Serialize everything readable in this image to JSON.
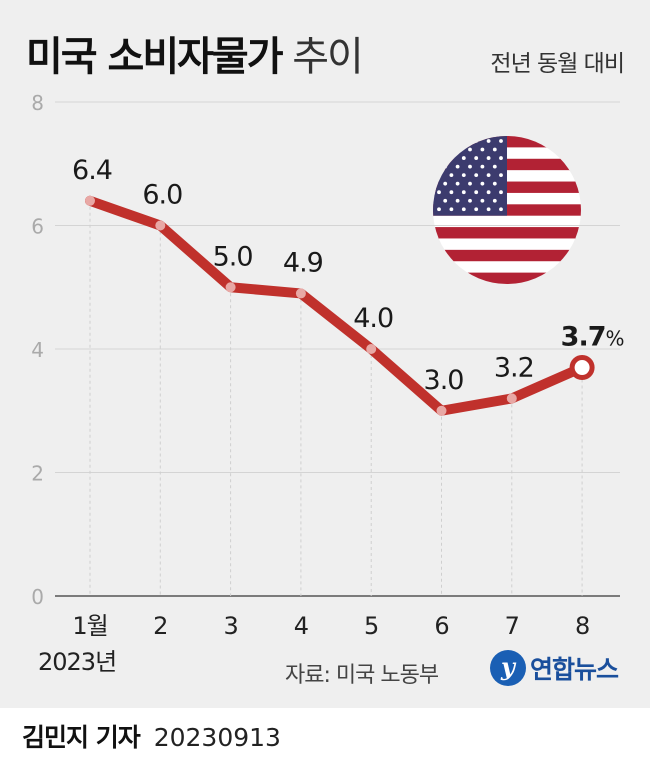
{
  "header": {
    "title_bold": "미국 소비자물가",
    "title_light": "추이",
    "subtitle": "전년 동월 대비"
  },
  "chart_data": {
    "type": "line",
    "title": "미국 소비자물가 추이",
    "subtitle": "전년 동월 대비",
    "categories": [
      "1월",
      "2",
      "3",
      "4",
      "5",
      "6",
      "7",
      "8"
    ],
    "x_sublabel": "2023년",
    "values": [
      6.4,
      6.0,
      5.0,
      4.9,
      4.0,
      3.0,
      3.2,
      3.7
    ],
    "value_labels": [
      "6.4",
      "6.0",
      "5.0",
      "4.9",
      "4.0",
      "3.0",
      "3.2",
      "3.7"
    ],
    "last_unit": "%",
    "y_ticks": [
      "0",
      "2",
      "4",
      "6",
      "8"
    ],
    "ylim": [
      0,
      8
    ],
    "grid": true,
    "line_color": "#c0312c"
  },
  "footer": {
    "source": "자료: 미국 노동부",
    "logo_text": "연합뉴스",
    "byline_name": "김민지 기자",
    "byline_date": "20230913"
  }
}
